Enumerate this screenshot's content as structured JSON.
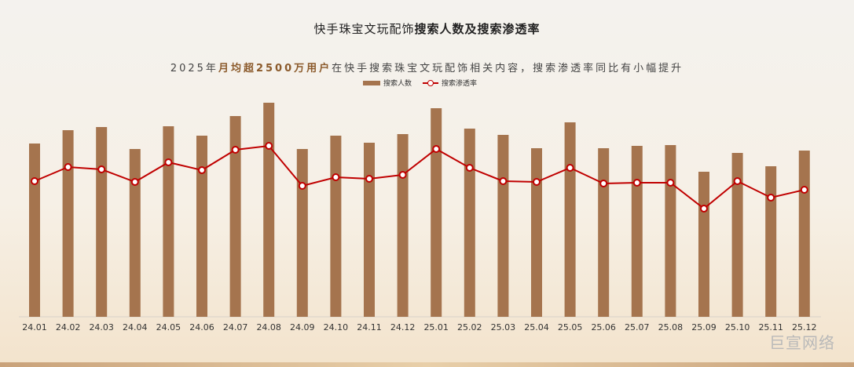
{
  "title_part1": "快手珠宝文玩配饰",
  "title_part2": "搜索人数及搜索渗透率",
  "subtitle": {
    "pre": "2025年",
    "highlight": "月均超2500万用户",
    "post": "在快手搜索珠宝文玩配饰相关内容，搜索渗透率同比有小幅提升"
  },
  "watermark": "巨宣网络",
  "colors": {
    "bar": "#a5744e",
    "line": "#c00000",
    "marker_fill": "#ffffff"
  },
  "chart_data": {
    "type": "bar",
    "categories": [
      "24.01",
      "24.02",
      "24.03",
      "24.04",
      "24.05",
      "24.06",
      "24.07",
      "24.08",
      "24.09",
      "24.10",
      "24.11",
      "24.12",
      "25.01",
      "25.02",
      "25.03",
      "25.04",
      "25.05",
      "25.06",
      "25.07",
      "25.08",
      "25.09",
      "25.10",
      "25.11",
      "25.12"
    ],
    "series": [
      {
        "name": "搜索人数",
        "type": "bar",
        "values": [
          221,
          238,
          242,
          214,
          243,
          231,
          256,
          273,
          214,
          231,
          222,
          233,
          266,
          240,
          232,
          215,
          248,
          215,
          218,
          219,
          185,
          209,
          192,
          212
        ]
      },
      {
        "name": "搜索渗透率",
        "type": "line",
        "values": [
          173,
          191,
          188,
          172,
          197,
          187,
          213,
          218,
          167,
          178,
          176,
          181,
          214,
          190,
          173,
          172,
          190,
          170,
          171,
          171,
          138,
          173,
          152,
          162
        ]
      }
    ],
    "legend_position": "top-center",
    "grid": false,
    "axes_visible": false
  }
}
